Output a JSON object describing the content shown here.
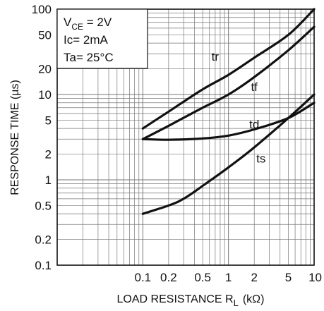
{
  "chart_data": {
    "type": "line",
    "xlabel": "LOAD RESISTANCE R",
    "xlabel_sub": "L",
    "xlabel_unit": "(kΩ)",
    "ylabel": "RESPONSE TIME (µs)",
    "x_scale": "log",
    "y_scale": "log",
    "xlim": [
      0.01,
      10
    ],
    "ylim": [
      0.1,
      100
    ],
    "grid": true,
    "x_ticks": [
      {
        "value": 0.1,
        "label": "0.1"
      },
      {
        "value": 0.2,
        "label": "0.2"
      },
      {
        "value": 0.5,
        "label": "0.5"
      },
      {
        "value": 1,
        "label": "1"
      },
      {
        "value": 2,
        "label": "2"
      },
      {
        "value": 5,
        "label": "5"
      },
      {
        "value": 10,
        "label": "10"
      }
    ],
    "y_ticks": [
      {
        "value": 0.1,
        "label": "0.1"
      },
      {
        "value": 0.2,
        "label": "0.2"
      },
      {
        "value": 0.5,
        "label": "0.5"
      },
      {
        "value": 1,
        "label": "1"
      },
      {
        "value": 2,
        "label": "2"
      },
      {
        "value": 5,
        "label": "5"
      },
      {
        "value": 10,
        "label": "10"
      },
      {
        "value": 20,
        "label": "20"
      },
      {
        "value": 50,
        "label": "50"
      },
      {
        "value": 100,
        "label": "100"
      }
    ],
    "conditions": {
      "vce_main": "V",
      "vce_sub": "CE",
      "vce_value": " = 2V",
      "ic": "Ic= 2mA",
      "ta": "Ta= 25°C"
    },
    "series": [
      {
        "name": "tr",
        "label_at": [
          0.7,
          25
        ],
        "points": [
          [
            0.1,
            4
          ],
          [
            0.2,
            6.3
          ],
          [
            0.5,
            11.5
          ],
          [
            1,
            17
          ],
          [
            2,
            27
          ],
          [
            5,
            50
          ],
          [
            10,
            100
          ]
        ]
      },
      {
        "name": "tf",
        "label_at": [
          2.0,
          11
        ],
        "points": [
          [
            0.1,
            3
          ],
          [
            0.2,
            4.3
          ],
          [
            0.5,
            7
          ],
          [
            1,
            10
          ],
          [
            2,
            16
          ],
          [
            5,
            33
          ],
          [
            10,
            62
          ]
        ]
      },
      {
        "name": "td",
        "label_at": [
          2.0,
          4.0
        ],
        "points": [
          [
            0.1,
            3
          ],
          [
            0.2,
            2.95
          ],
          [
            0.5,
            3.05
          ],
          [
            1,
            3.3
          ],
          [
            2,
            3.9
          ],
          [
            5,
            5.3
          ],
          [
            10,
            8
          ]
        ]
      },
      {
        "name": "ts",
        "label_at": [
          2.4,
          1.6
        ],
        "points": [
          [
            0.1,
            0.4
          ],
          [
            0.2,
            0.5
          ],
          [
            0.3,
            0.6
          ],
          [
            0.5,
            0.85
          ],
          [
            1,
            1.4
          ],
          [
            2,
            2.4
          ],
          [
            5,
            5.3
          ],
          [
            10,
            10
          ]
        ]
      }
    ]
  }
}
